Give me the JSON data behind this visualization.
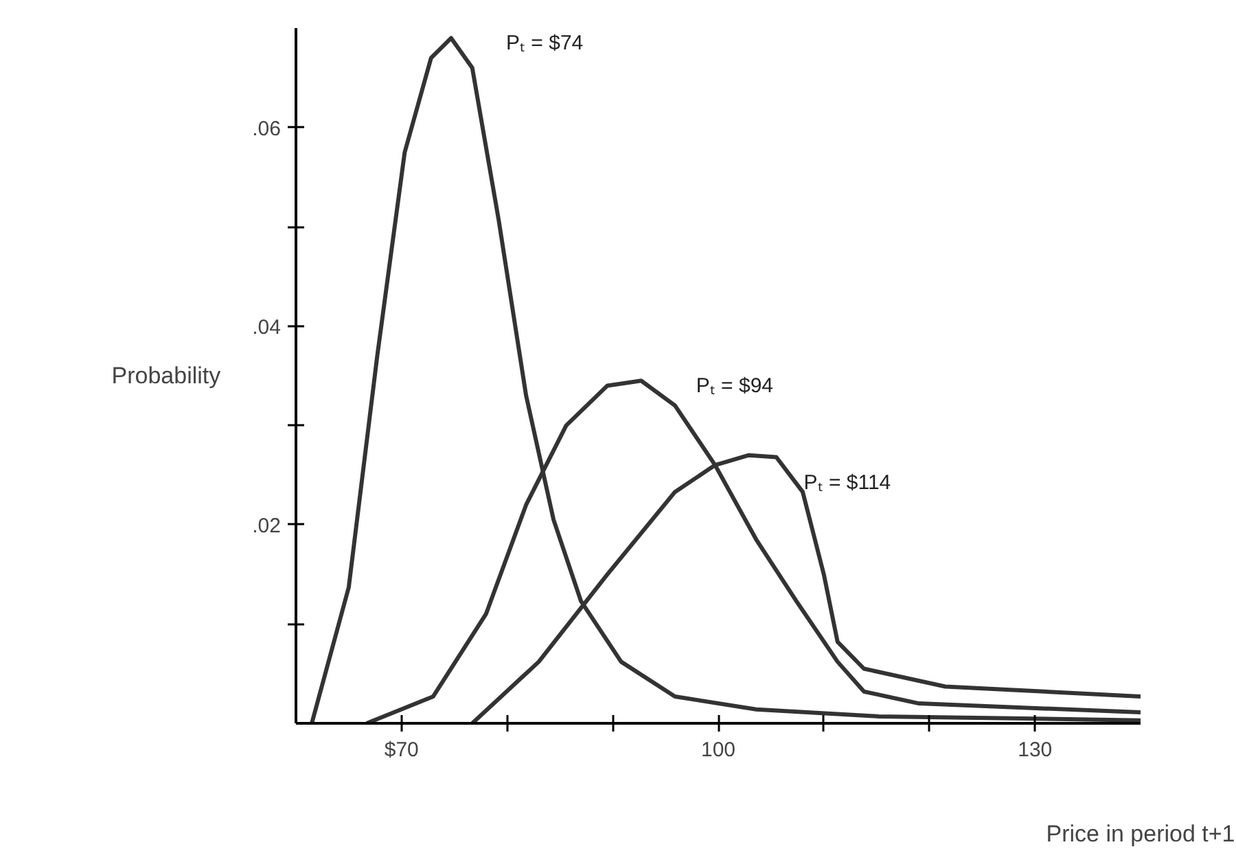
{
  "chart_data": {
    "type": "line",
    "xlabel": "Price in period t+1",
    "ylabel": "Probability",
    "xlim": [
      60,
      140
    ],
    "ylim": [
      0,
      0.07
    ],
    "xticks": [
      {
        "value": 70,
        "label": "$70"
      },
      {
        "value": 80,
        "label": null
      },
      {
        "value": 90,
        "label": null
      },
      100,
      {
        "value": 110,
        "label": null
      },
      {
        "value": 120,
        "label": null
      },
      130
    ],
    "yticks": [
      {
        "value": 0.01,
        "label": null
      },
      {
        "value": 0.02,
        "label": ".02"
      },
      {
        "value": 0.03,
        "label": null
      },
      {
        "value": 0.04,
        "label": ".04"
      },
      {
        "value": 0.05,
        "label": null
      },
      {
        "value": 0.06,
        "label": ".06"
      }
    ],
    "grid": false,
    "marker": "none",
    "line_style": "solid",
    "series": [
      {
        "color": "#333333",
        "x": [
          61.5,
          65,
          67.7,
          70.3,
          72.8,
          74.7,
          76.7,
          79.2,
          81.8,
          84.4,
          87,
          90.8,
          95.9,
          103.6,
          115.2,
          140
        ],
        "values": [
          0,
          0.0137,
          0.037,
          0.0575,
          0.067,
          0.069,
          0.066,
          0.0507,
          0.033,
          0.0205,
          0.0123,
          0.0062,
          0.0027,
          0.0014,
          0.0007,
          0.0003
        ]
      },
      {
        "color": "#333333",
        "x": [
          66.7,
          73,
          78,
          81.8,
          85.6,
          89.5,
          92.7,
          95.9,
          99.7,
          103.6,
          107.4,
          111.3,
          113.8,
          119,
          140
        ],
        "values": [
          0,
          0.0027,
          0.011,
          0.022,
          0.03,
          0.034,
          0.0345,
          0.032,
          0.026,
          0.0185,
          0.0123,
          0.0062,
          0.0032,
          0.002,
          0.0011
        ]
      },
      {
        "color": "#333333",
        "x": [
          76.7,
          83,
          89.5,
          95.9,
          99.7,
          102.9,
          105.5,
          108,
          110,
          111.3,
          113.8,
          121.5,
          140
        ],
        "values": [
          0,
          0.0062,
          0.015,
          0.0233,
          0.026,
          0.027,
          0.0268,
          0.0233,
          0.015,
          0.0082,
          0.0055,
          0.0037,
          0.0027
        ]
      }
    ],
    "annotations": [
      "Pₜ = $74",
      "Pₜ = $94",
      "Pₜ = $114"
    ]
  }
}
